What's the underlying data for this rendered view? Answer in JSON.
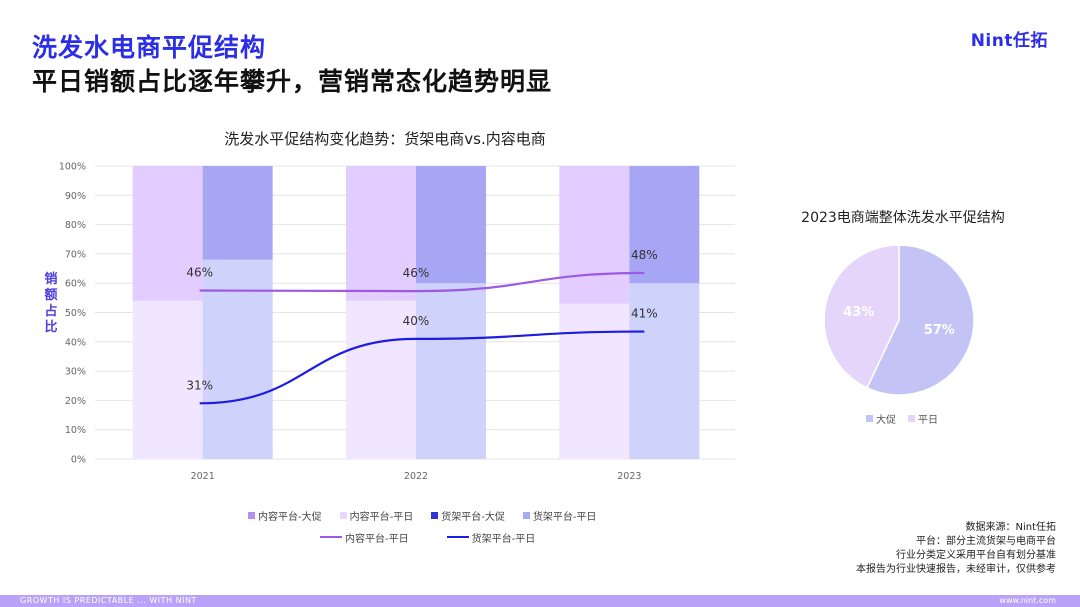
{
  "header": {
    "title_line1": "洗发水电商平促结构",
    "title_line2": "平日销额占比逐年攀升，营销常态化趋势明显",
    "brand": "Nint任拓"
  },
  "chart_data": [
    {
      "type": "bar",
      "title": "洗发水平促结构变化趋势：货架电商vs.内容电商",
      "ylabel": "销额占比",
      "xlabel": "",
      "ylim": [
        0,
        100
      ],
      "y_ticks": [
        "0%",
        "10%",
        "20%",
        "30%",
        "40%",
        "50%",
        "60%",
        "70%",
        "80%",
        "90%",
        "100%"
      ],
      "grid": true,
      "categories": [
        "2021",
        "2022",
        "2023"
      ],
      "stacked_series": [
        {
          "name": "内容平台-平日",
          "group": "内容平台",
          "values": [
            54,
            54,
            53
          ],
          "color": "#f1e6ff"
        },
        {
          "name": "内容平台-大促",
          "group": "内容平台",
          "values": [
            46,
            46,
            47
          ],
          "color": "#e3ccff"
        },
        {
          "name": "货架平台-平日",
          "group": "货架平台",
          "values": [
            68,
            60,
            60
          ],
          "color": "#cfd2fb"
        },
        {
          "name": "货架平台-大促",
          "group": "货架平台",
          "values": [
            32,
            40,
            40
          ],
          "color": "#a6a6f5"
        }
      ],
      "line_series": [
        {
          "name": "内容平台-平日",
          "values": [
            57.5,
            57.3,
            63.5
          ],
          "labels": [
            "46%",
            "46%",
            "48%"
          ],
          "color": "#9b59e6"
        },
        {
          "name": "货架平台-平日",
          "values": [
            19,
            41,
            43.5
          ],
          "labels": [
            "31%",
            "40%",
            "41%"
          ],
          "color": "#1c1de0"
        }
      ],
      "legend": {
        "bars": [
          {
            "label": "内容平台-大促",
            "color": "#b98ef2"
          },
          {
            "label": "内容平台-平日",
            "color": "#e8d8fc"
          },
          {
            "label": "货架平台-大促",
            "color": "#3434d6"
          },
          {
            "label": "货架平台-平日",
            "color": "#a9a9f2"
          }
        ],
        "lines": [
          {
            "label": "内容平台-平日",
            "color": "#9b59e6"
          },
          {
            "label": "货架平台-平日",
            "color": "#1c1de0"
          }
        ]
      }
    },
    {
      "type": "pie",
      "title": "2023电商端整体洗发水平促结构",
      "slices": [
        {
          "name": "大促",
          "value": 57,
          "label": "57%",
          "color": "#c3c3f5"
        },
        {
          "name": "平日",
          "value": 43,
          "label": "43%",
          "color": "#e6d5fb"
        }
      ],
      "legend_placement": "bottom"
    }
  ],
  "notes": {
    "line1": "数据来源：Nint任拓",
    "line2": "平台：部分主流货架与电商平台",
    "line3": "行业分类定义采用平台自有划分基准",
    "line4": "本报告为行业快速报告，未经审计，仅供参考"
  },
  "footer": {
    "left": "GROWTH IS PREDICTABLE ... WITH NINT",
    "right": "www.nint.com"
  }
}
